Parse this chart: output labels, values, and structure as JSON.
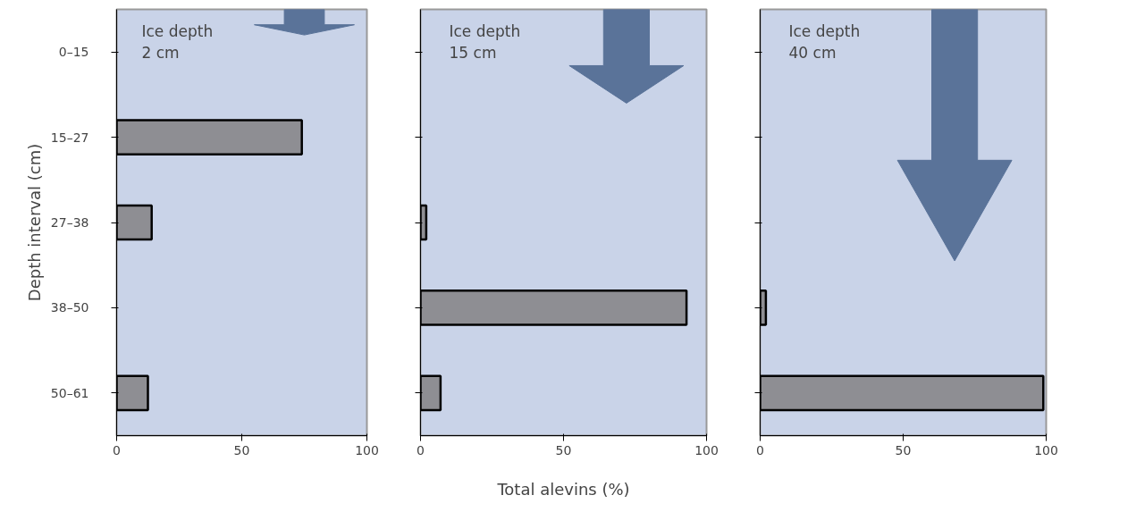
{
  "chart_data": [
    {
      "type": "bar",
      "orientation": "horizontal",
      "categories": [
        "0–15",
        "15–27",
        "27–38",
        "38–50",
        "50–61"
      ],
      "values": [
        null,
        74,
        14,
        null,
        12.5
      ],
      "color": "#8e8e93",
      "xlim": [
        0,
        100
      ],
      "xticks": [
        0,
        50,
        100
      ],
      "ylabel": "Depth interval (cm)",
      "annotations": [
        "Ice depth\n2 cm"
      ]
    },
    {
      "type": "bar",
      "orientation": "horizontal",
      "categories": [
        null,
        null,
        null,
        null,
        null
      ],
      "values": [
        null,
        null,
        2,
        93,
        7
      ],
      "color": "#8e8e93",
      "xlim": [
        0,
        100
      ],
      "xticks": [
        0,
        50,
        100
      ],
      "xlabel": "Total alevins (%)",
      "annotations": [
        "Ice depth\n15 cm"
      ]
    },
    {
      "type": "bar",
      "orientation": "horizontal",
      "categories": [
        null,
        null,
        null,
        null,
        null
      ],
      "values": [
        null,
        null,
        null,
        2,
        99
      ],
      "color": "#8e8e93",
      "xlim": [
        0,
        100
      ],
      "xticks": [
        0,
        50,
        100
      ],
      "annotations": [
        "Ice depth\n40 cm"
      ]
    }
  ]
}
